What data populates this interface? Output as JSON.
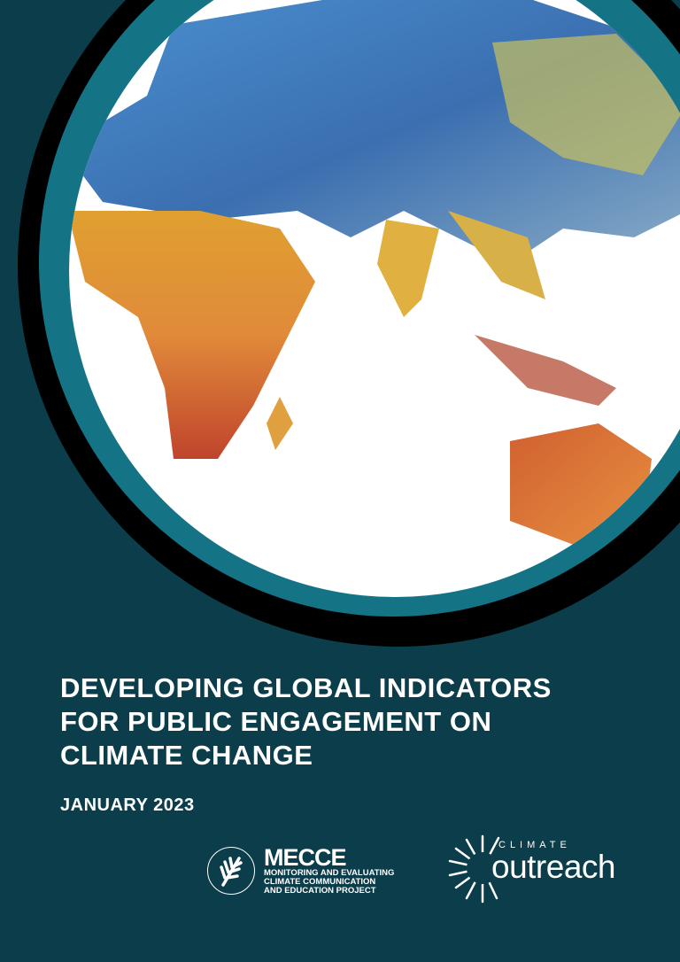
{
  "cover": {
    "title_lines": [
      "DEVELOPING GLOBAL INDICATORS",
      "FOR PUBLIC ENGAGEMENT ON",
      "CLIMATE CHANGE"
    ],
    "date": "JANUARY 2023"
  },
  "logos": {
    "mecce": {
      "name": "MECCE",
      "subtitle_lines": [
        "MONITORING AND EVALUATING",
        "CLIMATE COMMUNICATION",
        "AND EDUCATION PROJECT"
      ]
    },
    "climate_outreach": {
      "small": "CLIMATE",
      "large": "outreach"
    }
  },
  "colors": {
    "background": "#0b3d4b",
    "ring": "#157386",
    "shadow": "#000000"
  }
}
